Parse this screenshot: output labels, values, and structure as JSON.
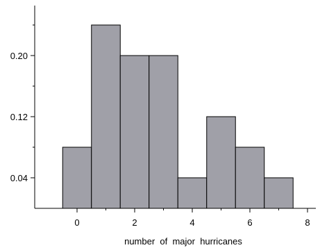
{
  "chart_data": {
    "type": "bar",
    "title": "",
    "xlabel": "number  of  major  hurricanes",
    "ylabel": "",
    "bin_width": 1,
    "bins": [
      {
        "center": 0,
        "value": 0.08
      },
      {
        "center": 1,
        "value": 0.24
      },
      {
        "center": 2,
        "value": 0.2
      },
      {
        "center": 3,
        "value": 0.2
      },
      {
        "center": 4,
        "value": 0.04
      },
      {
        "center": 5,
        "value": 0.12
      },
      {
        "center": 6,
        "value": 0.08
      },
      {
        "center": 7,
        "value": 0.04
      }
    ],
    "xlim": [
      -1,
      8.3
    ],
    "ylim": [
      0,
      0.28
    ],
    "x_ticks_major": [
      0,
      2,
      4,
      6,
      8
    ],
    "x_tick_labels": [
      "0",
      "2",
      "4",
      "6",
      "8"
    ],
    "x_ticks_minor": [
      1,
      3,
      5,
      7
    ],
    "y_ticks_major": [
      0.04,
      0.12,
      0.2
    ],
    "y_tick_labels": [
      "0.04",
      "0.12",
      "0.20"
    ],
    "y_ticks_minor": [
      0.08,
      0.16,
      0.24
    ],
    "grid": false,
    "bar_color": "#a0a0a8",
    "bar_edge_color": "#000000"
  }
}
